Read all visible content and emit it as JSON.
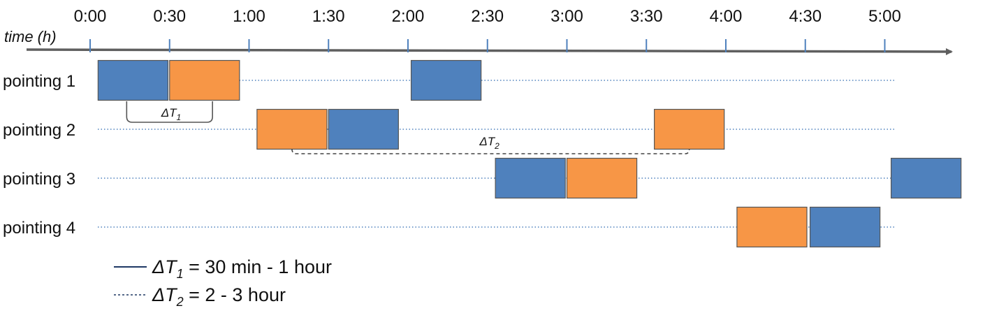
{
  "colors": {
    "blue": "#4f81bd",
    "orange": "#f79646",
    "axis": "#5f5f5f",
    "dotted": "#4f81bd"
  },
  "axis": {
    "label": "time (h)",
    "ticks": [
      "0:00",
      "0:30",
      "1:00",
      "1:30",
      "2:00",
      "2:30",
      "3:00",
      "3:30",
      "4:00",
      "4:30",
      "5:00"
    ]
  },
  "rows": [
    {
      "label": "pointing 1",
      "blocks": [
        {
          "start_h": 0.05,
          "color": "blue"
        },
        {
          "start_h": 0.5,
          "color": "orange"
        },
        {
          "start_h": 2.02,
          "color": "blue"
        }
      ]
    },
    {
      "label": "pointing 2",
      "blocks": [
        {
          "start_h": 1.05,
          "color": "orange"
        },
        {
          "start_h": 1.5,
          "color": "blue"
        },
        {
          "start_h": 3.55,
          "color": "orange"
        }
      ]
    },
    {
      "label": "pointing 3",
      "blocks": [
        {
          "start_h": 2.55,
          "color": "blue"
        },
        {
          "start_h": 3.0,
          "color": "orange"
        },
        {
          "start_h": 5.04,
          "color": "blue"
        }
      ]
    },
    {
      "label": "pointing 4",
      "blocks": [
        {
          "start_h": 4.07,
          "color": "orange"
        },
        {
          "start_h": 4.53,
          "color": "blue"
        }
      ]
    }
  ],
  "block_duration_h": 0.44,
  "brackets": {
    "dt1": {
      "symbol": "ΔT",
      "sub": "1",
      "from_h": 0.23,
      "to_h": 0.77
    },
    "dt2": {
      "symbol": "ΔT",
      "sub": "2",
      "from_h": 1.27,
      "to_h": 3.77
    }
  },
  "legend": [
    {
      "style": "solid",
      "symbol": "ΔT",
      "sub": "1",
      "text": " = 30 min - 1 hour"
    },
    {
      "style": "dashed",
      "symbol": "ΔT",
      "sub": "2",
      "text": " = 2 - 3 hour"
    }
  ]
}
